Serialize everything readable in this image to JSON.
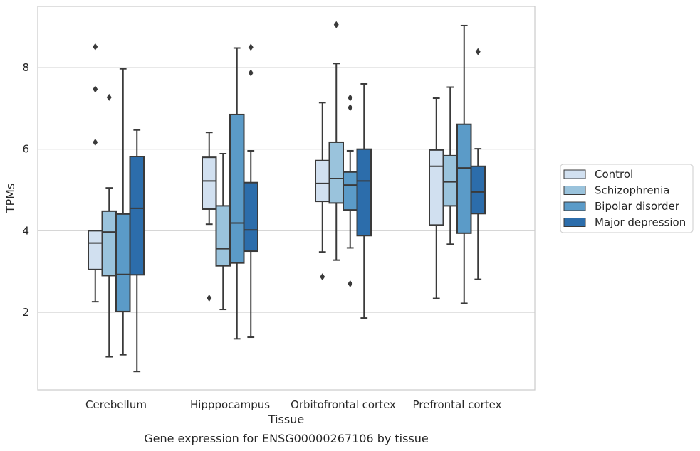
{
  "chart_data": {
    "type": "boxplot",
    "title": "",
    "caption": "Gene expression for ENSG00000267106 by tissue",
    "xlabel": "Tissue",
    "ylabel": "TPMs",
    "categories": [
      "Cerebellum",
      "Hipppocampus",
      "Orbitofrontal cortex",
      "Prefrontal cortex"
    ],
    "ylim": [
      0.1,
      9.5
    ],
    "yticks": [
      2,
      4,
      6,
      8
    ],
    "grid": true,
    "legend_position": "right",
    "series": [
      {
        "name": "Control",
        "color": "#d1e0f0",
        "boxes": [
          {
            "whislo": 2.26,
            "q1": 3.05,
            "med": 3.7,
            "q3": 4.0,
            "whishi": 4.0,
            "fliers": [
              6.17,
              7.47,
              8.51
            ]
          },
          {
            "whislo": 4.16,
            "q1": 4.53,
            "med": 5.22,
            "q3": 5.8,
            "whishi": 6.41,
            "fliers": [
              2.35
            ]
          },
          {
            "whislo": 3.48,
            "q1": 4.72,
            "med": 5.16,
            "q3": 5.72,
            "whishi": 7.14,
            "fliers": [
              2.87
            ]
          },
          {
            "whislo": 2.34,
            "q1": 4.14,
            "med": 5.58,
            "q3": 5.98,
            "whishi": 7.25,
            "fliers": []
          }
        ]
      },
      {
        "name": "Schizophrenia",
        "color": "#9ac3dc",
        "boxes": [
          {
            "whislo": 0.91,
            "q1": 2.9,
            "med": 3.97,
            "q3": 4.48,
            "whishi": 5.05,
            "fliers": [
              7.27
            ]
          },
          {
            "whislo": 2.07,
            "q1": 3.14,
            "med": 3.56,
            "q3": 4.61,
            "whishi": 5.89,
            "fliers": []
          },
          {
            "whislo": 3.28,
            "q1": 4.68,
            "med": 5.28,
            "q3": 6.17,
            "whishi": 8.1,
            "fliers": [
              9.05
            ]
          },
          {
            "whislo": 3.67,
            "q1": 4.61,
            "med": 5.2,
            "q3": 5.84,
            "whishi": 7.52,
            "fliers": []
          }
        ]
      },
      {
        "name": "Bipolar disorder",
        "color": "#5b9bc8",
        "boxes": [
          {
            "whislo": 0.96,
            "q1": 2.02,
            "med": 2.93,
            "q3": 4.41,
            "whishi": 7.97,
            "fliers": []
          },
          {
            "whislo": 1.35,
            "q1": 3.21,
            "med": 4.19,
            "q3": 6.85,
            "whishi": 8.48,
            "fliers": []
          },
          {
            "whislo": 3.58,
            "q1": 4.51,
            "med": 5.12,
            "q3": 5.44,
            "whishi": 5.96,
            "fliers": [
              2.7,
              7.02,
              7.26
            ]
          },
          {
            "whislo": 2.22,
            "q1": 3.94,
            "med": 5.54,
            "q3": 6.61,
            "whishi": 9.03,
            "fliers": []
          }
        ]
      },
      {
        "name": "Major depression",
        "color": "#2c6dab",
        "boxes": [
          {
            "whislo": 0.55,
            "q1": 2.92,
            "med": 4.55,
            "q3": 5.82,
            "whishi": 6.47,
            "fliers": []
          },
          {
            "whislo": 1.39,
            "q1": 3.5,
            "med": 4.02,
            "q3": 5.18,
            "whishi": 5.96,
            "fliers": [
              7.87,
              8.5
            ]
          },
          {
            "whislo": 1.86,
            "q1": 3.88,
            "med": 5.22,
            "q3": 6.0,
            "whishi": 7.6,
            "fliers": []
          },
          {
            "whislo": 2.81,
            "q1": 4.42,
            "med": 4.95,
            "q3": 5.58,
            "whishi": 6.01,
            "fliers": [
              8.39
            ]
          }
        ]
      }
    ]
  }
}
